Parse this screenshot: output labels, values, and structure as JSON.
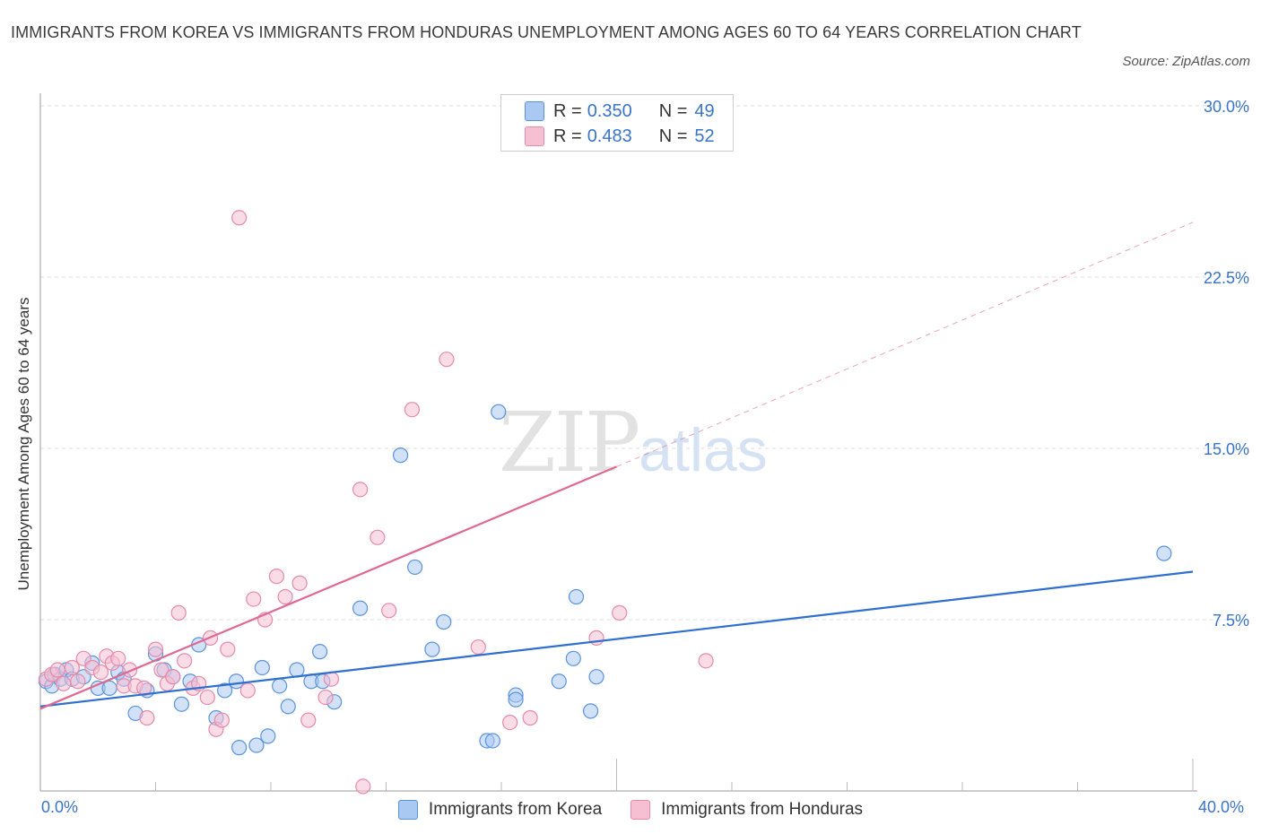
{
  "title": "IMMIGRANTS FROM KOREA VS IMMIGRANTS FROM HONDURAS UNEMPLOYMENT AMONG AGES 60 TO 64 YEARS CORRELATION CHART",
  "source": "Source: ZipAtlas.com",
  "watermark": {
    "zip": "ZIP",
    "atlas": "atlas"
  },
  "legend": {
    "rows": [
      {
        "series": "korea",
        "r_label": "R =",
        "r_value": "0.350",
        "n_label": "N =",
        "n_value": "49"
      },
      {
        "series": "honduras",
        "r_label": "R =",
        "r_value": "0.483",
        "n_label": "N =",
        "n_value": "52"
      }
    ]
  },
  "colors": {
    "korea_fill": "#a9c9f2",
    "korea_stroke": "#5b93db",
    "korea_line": "#2e6fcf",
    "honduras_fill": "#f6c0d2",
    "honduras_stroke": "#e58aaa",
    "honduras_line": "#e06892",
    "grid": "#dddddd",
    "axis_label": "#3a74c8"
  },
  "chart_data": {
    "type": "scatter",
    "title": "IMMIGRANTS FROM KOREA VS IMMIGRANTS FROM HONDURAS UNEMPLOYMENT AMONG AGES 60 TO 64 YEARS CORRELATION CHART",
    "xlabel": "",
    "ylabel": "Unemployment Among Ages 60 to 64 years",
    "xlim": [
      0,
      40
    ],
    "ylim": [
      0,
      30
    ],
    "x_tick_labels": [
      "0.0%",
      "40.0%"
    ],
    "y_ticks": [
      7.5,
      15.0,
      22.5,
      30.0
    ],
    "y_tick_labels": [
      "7.5%",
      "15.0%",
      "22.5%",
      "30.0%"
    ],
    "grid": true,
    "legend_position": "top-center",
    "series": [
      {
        "name": "Immigrants from Korea",
        "key": "korea",
        "trend": {
          "x": [
            0,
            40
          ],
          "y": [
            3.7,
            9.6
          ],
          "style": "solid"
        },
        "points": [
          [
            0.2,
            4.8
          ],
          [
            0.4,
            4.6
          ],
          [
            0.5,
            5.1
          ],
          [
            0.7,
            4.9
          ],
          [
            0.9,
            5.3
          ],
          [
            1.1,
            4.9
          ],
          [
            1.5,
            5.0
          ],
          [
            1.8,
            5.6
          ],
          [
            2.0,
            4.5
          ],
          [
            2.4,
            4.5
          ],
          [
            2.7,
            5.2
          ],
          [
            2.9,
            4.9
          ],
          [
            3.3,
            3.4
          ],
          [
            3.7,
            4.4
          ],
          [
            4.0,
            6.0
          ],
          [
            4.3,
            5.3
          ],
          [
            4.6,
            5.0
          ],
          [
            4.9,
            3.8
          ],
          [
            5.2,
            4.8
          ],
          [
            5.5,
            6.4
          ],
          [
            6.1,
            3.2
          ],
          [
            6.4,
            4.4
          ],
          [
            6.8,
            4.8
          ],
          [
            6.9,
            1.9
          ],
          [
            7.5,
            2.0
          ],
          [
            7.7,
            5.4
          ],
          [
            7.9,
            2.4
          ],
          [
            8.3,
            4.6
          ],
          [
            8.6,
            3.7
          ],
          [
            8.9,
            5.3
          ],
          [
            9.4,
            4.8
          ],
          [
            9.7,
            6.1
          ],
          [
            9.8,
            4.8
          ],
          [
            10.2,
            3.9
          ],
          [
            11.1,
            8.0
          ],
          [
            12.5,
            14.7
          ],
          [
            13.0,
            9.8
          ],
          [
            13.6,
            6.2
          ],
          [
            14.0,
            7.4
          ],
          [
            15.5,
            2.2
          ],
          [
            15.7,
            2.2
          ],
          [
            15.9,
            16.6
          ],
          [
            16.5,
            4.2
          ],
          [
            16.5,
            4.0
          ],
          [
            18.0,
            4.8
          ],
          [
            18.5,
            5.8
          ],
          [
            18.6,
            8.5
          ],
          [
            19.1,
            3.5
          ],
          [
            19.3,
            5.0
          ],
          [
            39.0,
            10.4
          ]
        ]
      },
      {
        "name": "Immigrants from Honduras",
        "key": "honduras",
        "trend": {
          "x": [
            0,
            20
          ],
          "y": [
            3.6,
            14.2
          ],
          "style": "solid",
          "extended_to": [
            40,
            24.9
          ],
          "extended_style": "dashed"
        },
        "points": [
          [
            0.2,
            4.9
          ],
          [
            0.4,
            5.1
          ],
          [
            0.6,
            5.3
          ],
          [
            0.8,
            4.7
          ],
          [
            1.1,
            5.4
          ],
          [
            1.3,
            4.8
          ],
          [
            1.5,
            5.8
          ],
          [
            1.8,
            5.4
          ],
          [
            2.1,
            5.2
          ],
          [
            2.3,
            5.9
          ],
          [
            2.5,
            5.6
          ],
          [
            2.7,
            5.8
          ],
          [
            2.9,
            4.6
          ],
          [
            3.1,
            5.3
          ],
          [
            3.3,
            4.6
          ],
          [
            3.6,
            4.5
          ],
          [
            3.7,
            3.2
          ],
          [
            4.0,
            6.2
          ],
          [
            4.2,
            5.3
          ],
          [
            4.4,
            4.7
          ],
          [
            4.6,
            5.0
          ],
          [
            4.8,
            7.8
          ],
          [
            5.0,
            5.7
          ],
          [
            5.3,
            4.5
          ],
          [
            5.5,
            4.7
          ],
          [
            5.8,
            4.1
          ],
          [
            5.9,
            6.7
          ],
          [
            6.1,
            2.7
          ],
          [
            6.3,
            3.1
          ],
          [
            6.5,
            6.2
          ],
          [
            6.9,
            25.1
          ],
          [
            7.2,
            4.4
          ],
          [
            7.4,
            8.4
          ],
          [
            7.8,
            7.5
          ],
          [
            8.2,
            9.4
          ],
          [
            8.5,
            8.5
          ],
          [
            9.0,
            9.1
          ],
          [
            9.3,
            3.1
          ],
          [
            9.9,
            4.1
          ],
          [
            10.1,
            4.9
          ],
          [
            11.1,
            13.2
          ],
          [
            11.2,
            0.2
          ],
          [
            11.7,
            11.1
          ],
          [
            12.1,
            7.9
          ],
          [
            12.9,
            16.7
          ],
          [
            14.1,
            18.9
          ],
          [
            15.2,
            6.3
          ],
          [
            16.3,
            3.0
          ],
          [
            17.0,
            3.2
          ],
          [
            19.3,
            6.7
          ],
          [
            20.1,
            7.8
          ],
          [
            23.1,
            5.7
          ]
        ]
      }
    ]
  },
  "bottom_legend": [
    {
      "series": "korea",
      "label": "Immigrants from Korea"
    },
    {
      "series": "honduras",
      "label": "Immigrants from Honduras"
    }
  ]
}
